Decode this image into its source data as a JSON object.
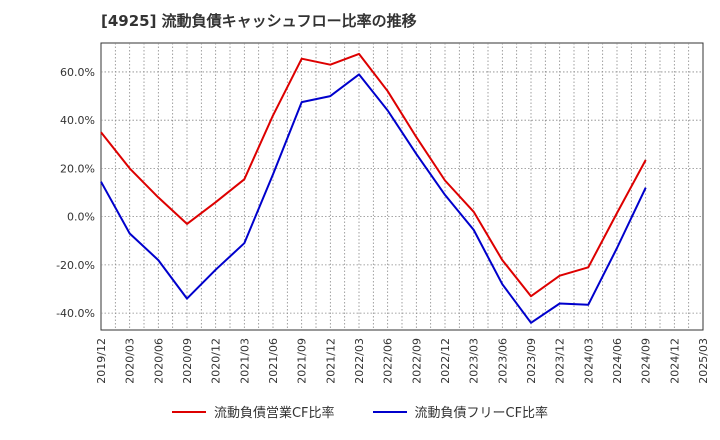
{
  "chart_data": {
    "type": "line",
    "title": "[4925]  流動負債キャッシュフロー比率の推移",
    "x_ticks": [
      "2019/12",
      "2020/03",
      "2020/06",
      "2020/09",
      "2020/12",
      "2021/03",
      "2021/06",
      "2021/09",
      "2021/12",
      "2022/03",
      "2022/06",
      "2022/09",
      "2022/12",
      "2023/03",
      "2023/06",
      "2023/09",
      "2023/12",
      "2024/03",
      "2024/06",
      "2024/09",
      "2024/12",
      "2025/03"
    ],
    "y_ticks": [
      {
        "value": 60,
        "label": "60.0%"
      },
      {
        "value": 40,
        "label": "40.0%"
      },
      {
        "value": 20,
        "label": "20.0%"
      },
      {
        "value": 0,
        "label": "0.0%"
      },
      {
        "value": -20,
        "label": "-20.0%"
      },
      {
        "value": -40,
        "label": "-40.0%"
      }
    ],
    "ylim": [
      -47,
      72
    ],
    "grid": true,
    "legend_position": "bottom",
    "series": [
      {
        "name": "流動負債営業CF比率",
        "color": "#dd0000",
        "values": [
          35.0,
          20.0,
          8.0,
          -3.0,
          6.0,
          15.5,
          42.0,
          65.5,
          63.0,
          67.5,
          52.0,
          33.0,
          15.0,
          2.0,
          -18.0,
          -33.0,
          -24.5,
          -21.0,
          1.5,
          23.5,
          null,
          null
        ]
      },
      {
        "name": "流動負債フリーCF比率",
        "color": "#0000cc",
        "values": [
          14.5,
          -7.0,
          -18.0,
          -34.0,
          -22.0,
          -11.0,
          17.5,
          47.5,
          50.0,
          59.0,
          44.0,
          26.0,
          9.0,
          -5.5,
          -28.0,
          -44.0,
          -36.0,
          -36.5,
          -13.0,
          12.0,
          null,
          null
        ]
      }
    ]
  }
}
